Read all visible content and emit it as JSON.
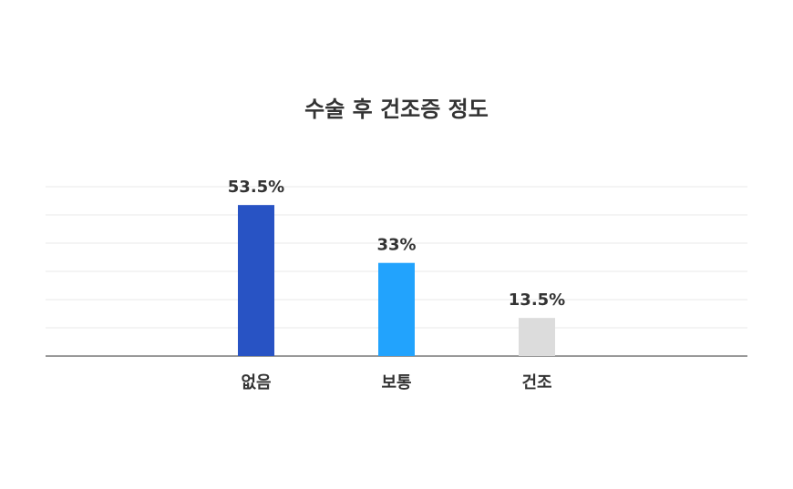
{
  "chart_data": {
    "type": "bar",
    "title": "수술 후 건조증 정도",
    "categories": [
      "없음",
      "보통",
      "건조"
    ],
    "values": [
      53.5,
      33,
      13.5
    ],
    "value_labels": [
      "53.5%",
      "33%",
      "13.5%"
    ],
    "colors": [
      "#2853c4",
      "#22a3fd",
      "#dcdcdc"
    ],
    "ylim": [
      0,
      60
    ],
    "yticks": [
      0,
      10,
      20,
      30,
      40,
      50,
      60
    ],
    "grid": true
  }
}
